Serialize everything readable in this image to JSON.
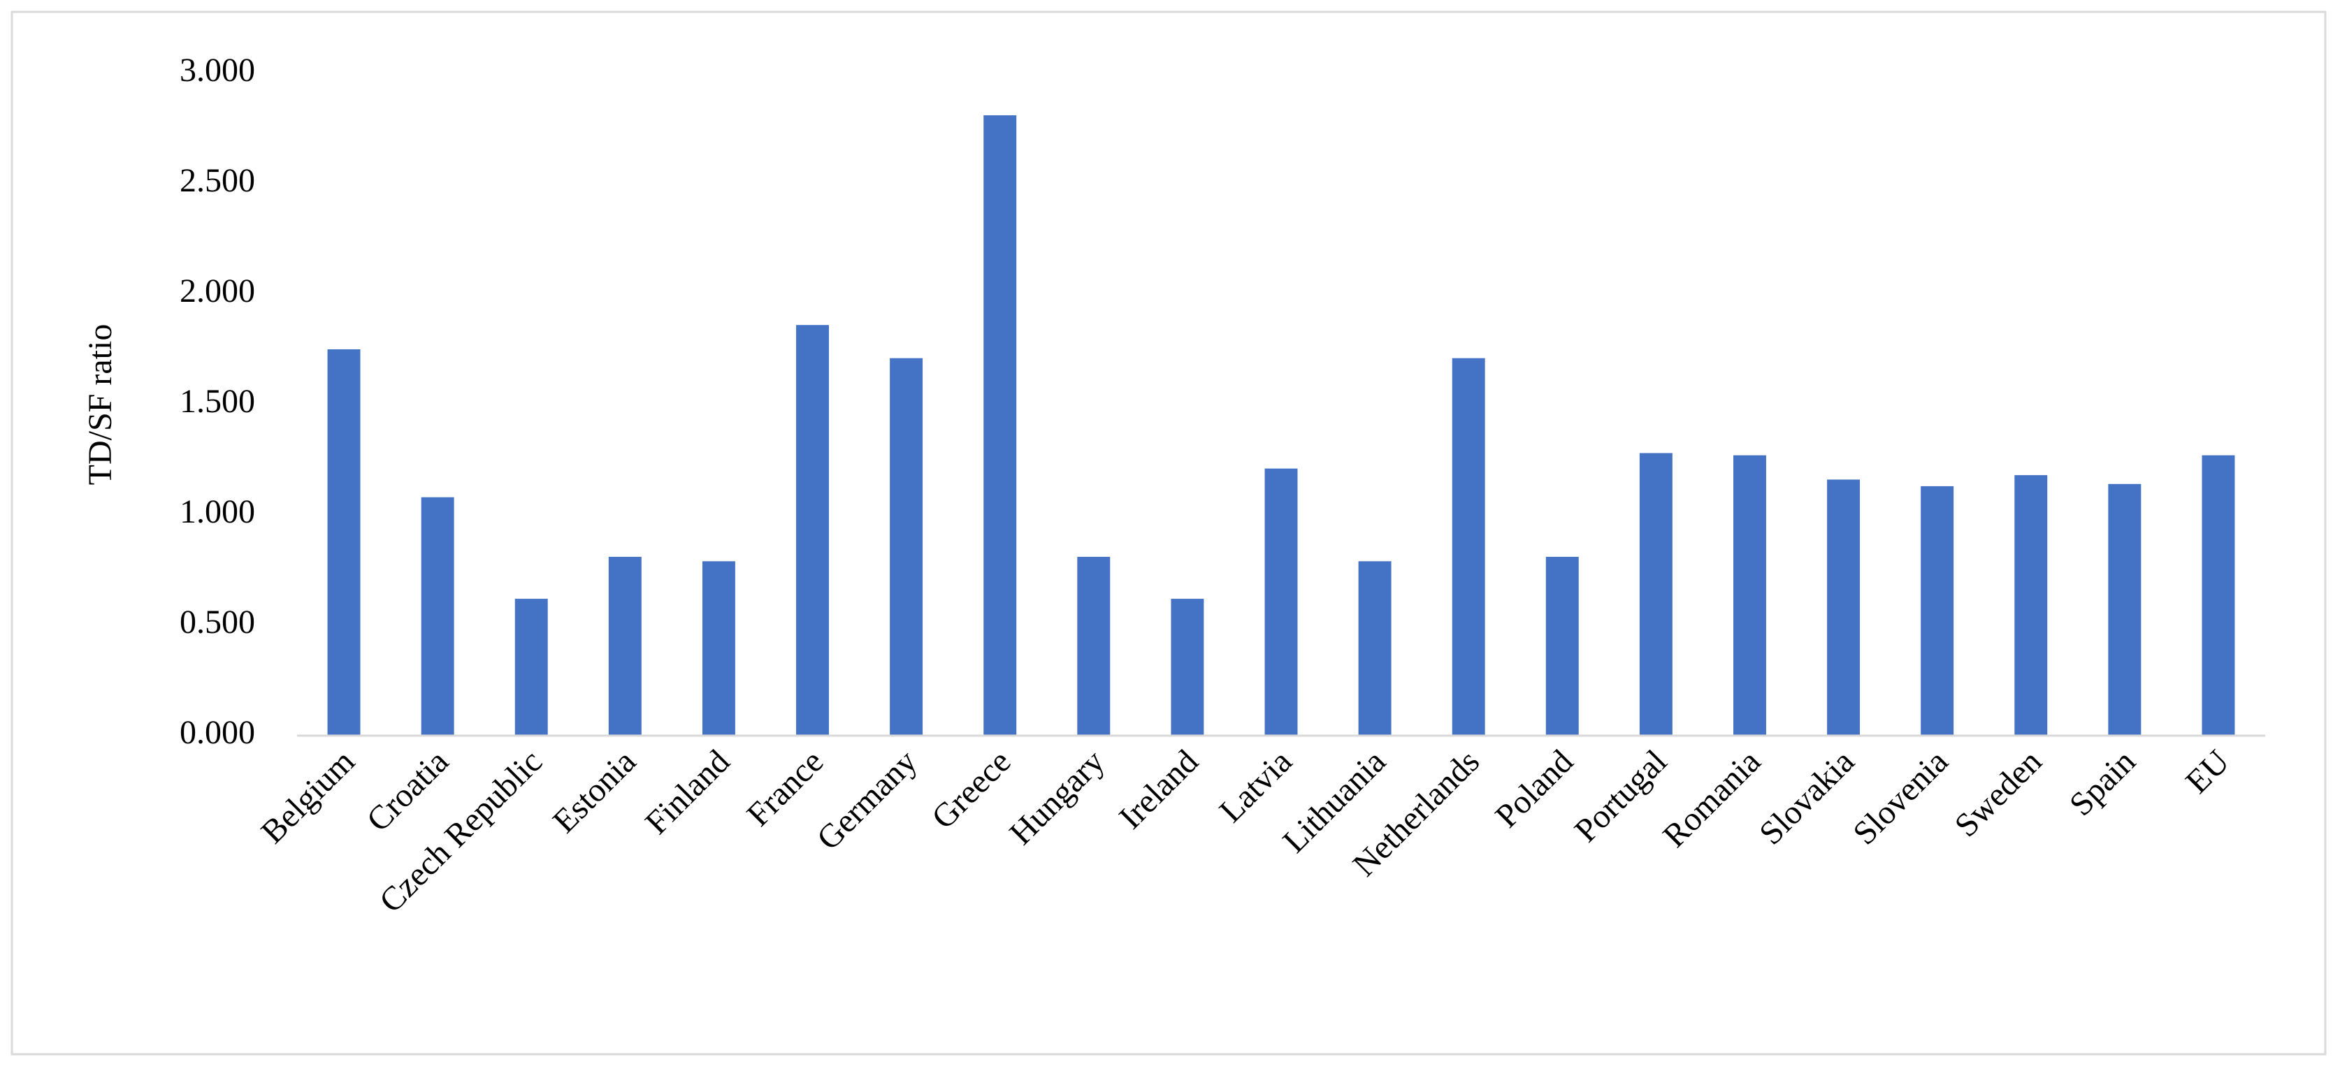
{
  "chart_data": {
    "type": "bar",
    "y_label": "TD/SF ratio",
    "categories": [
      "Belgium",
      "Croatia",
      "Czech Republic",
      "Estonia",
      "Finland",
      "France",
      "Germany",
      "Greece",
      "Hungary",
      "Ireland",
      "Latvia",
      "Lithuania",
      "Netherlands",
      "Poland",
      "Portugal",
      "Romania",
      "Slovakia",
      "Slovenia",
      "Sweden",
      "Spain",
      "EU"
    ],
    "values": [
      1.75,
      1.08,
      0.62,
      0.81,
      0.79,
      1.86,
      1.71,
      2.81,
      0.81,
      0.62,
      1.21,
      0.79,
      1.71,
      0.81,
      1.28,
      1.27,
      1.16,
      1.13,
      1.18,
      1.14,
      1.27
    ],
    "color": "#4472c4",
    "ylim": [
      0,
      3
    ],
    "yticks": [
      {
        "value": 0,
        "label": "0.000"
      },
      {
        "value": 0.5,
        "label": "0.500"
      },
      {
        "value": 1,
        "label": "1.000"
      },
      {
        "value": 1.5,
        "label": "1.500"
      },
      {
        "value": 2,
        "label": "2.000"
      },
      {
        "value": 2.5,
        "label": "2.500"
      },
      {
        "value": 3,
        "label": "3.000"
      }
    ],
    "grid": false
  }
}
